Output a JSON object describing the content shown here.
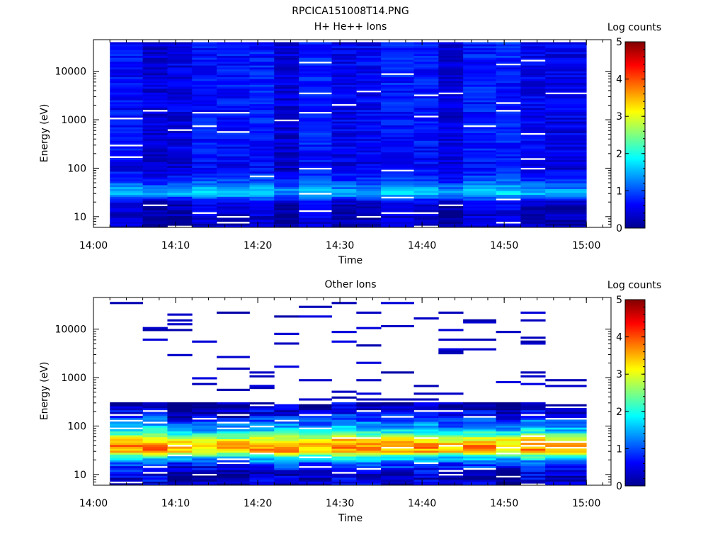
{
  "figure_title": "RPCICA151008T14.PNG",
  "chart_data": [
    {
      "type": "heatmap",
      "title": "H+ He++ Ions",
      "xlabel": "Time",
      "ylabel": "Energy (eV)",
      "x_scale": "time",
      "y_scale": "log",
      "xlim": [
        "14:00",
        "15:03"
      ],
      "ylim": [
        6,
        45000
      ],
      "x_ticks": [
        "14:00",
        "14:10",
        "14:20",
        "14:30",
        "14:40",
        "14:50",
        "15:00"
      ],
      "y_ticks": [
        "10",
        "100",
        "1000",
        "10000"
      ],
      "colorbar": {
        "label": "Log counts",
        "min": 0,
        "max": 5,
        "ticks": [
          "0",
          "1",
          "2",
          "3",
          "4",
          "5"
        ],
        "colormap": "jet"
      },
      "time_bins": [
        "14:02",
        "14:06",
        "14:09",
        "14:12",
        "14:15",
        "14:19",
        "14:22",
        "14:25",
        "14:29",
        "14:32",
        "14:35",
        "14:39",
        "14:42",
        "14:45",
        "14:49",
        "14:52",
        "14:55",
        "15:00"
      ],
      "energy_range_ev": [
        6,
        40000
      ],
      "energy_channels": 96,
      "profile_energy_ev": [
        10,
        20,
        30,
        40,
        60,
        100,
        300,
        1000,
        10000
      ],
      "profile_log_counts": [
        0.3,
        0.4,
        1.6,
        1.3,
        0.8,
        0.5,
        0.6,
        0.6,
        0.6
      ]
    },
    {
      "type": "heatmap",
      "title": "Other Ions",
      "xlabel": "Time",
      "ylabel": "Energy (eV)",
      "x_scale": "time",
      "y_scale": "log",
      "xlim": [
        "14:00",
        "15:03"
      ],
      "ylim": [
        6,
        45000
      ],
      "x_ticks": [
        "14:00",
        "14:10",
        "14:20",
        "14:30",
        "14:40",
        "14:50",
        "15:00"
      ],
      "y_ticks": [
        "10",
        "100",
        "1000",
        "10000"
      ],
      "colorbar": {
        "label": "Log counts",
        "min": 0,
        "max": 5,
        "ticks": [
          "0",
          "1",
          "2",
          "3",
          "4",
          "5"
        ],
        "colormap": "jet"
      },
      "time_bins": [
        "14:02",
        "14:06",
        "14:09",
        "14:12",
        "14:15",
        "14:19",
        "14:22",
        "14:25",
        "14:29",
        "14:32",
        "14:35",
        "14:39",
        "14:42",
        "14:45",
        "14:49",
        "14:52",
        "14:55",
        "15:00"
      ],
      "energy_range_ev": [
        6,
        40000
      ],
      "energy_channels": 96,
      "profile_energy_ev": [
        10,
        15,
        20,
        25,
        30,
        40,
        50,
        70,
        100,
        150,
        200,
        300
      ],
      "profile_log_counts": [
        0.3,
        0.8,
        1.3,
        2.3,
        3.4,
        3.6,
        3.2,
        2.0,
        1.3,
        0.7,
        0.4,
        0.2
      ],
      "sparse_high_energy": "scattered single-channel counts above 300 eV, log counts below 0.5"
    }
  ]
}
